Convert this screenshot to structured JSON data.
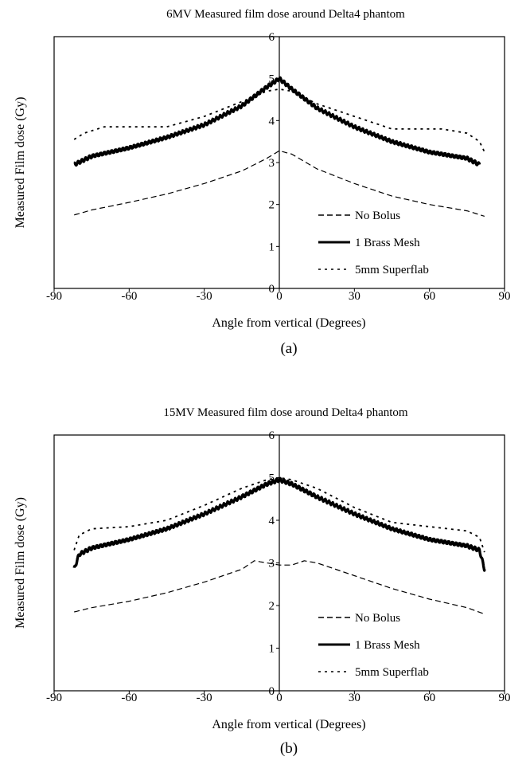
{
  "chart_data": [
    {
      "type": "line",
      "title": "6MV Measured film dose around Delta4 phantom",
      "xlabel": "Angle from vertical (Degrees)",
      "ylabel": "Measured Film dose (Gy)",
      "caption": "(a)",
      "xlim": [
        -90,
        90
      ],
      "ylim": [
        0,
        6
      ],
      "x_ticks": [
        "-90",
        "-60",
        "-30",
        "0",
        "30",
        "60",
        "90"
      ],
      "y_ticks": [
        "0",
        "1",
        "2",
        "3",
        "4",
        "5",
        "6"
      ],
      "grid": false,
      "legend_position": "lower-right",
      "series": [
        {
          "name": "No Bolus",
          "style": "dashed",
          "color": "#000000",
          "x": [
            -82,
            -75,
            -60,
            -45,
            -30,
            -15,
            -5,
            0,
            5,
            15,
            30,
            45,
            60,
            75,
            82
          ],
          "y": [
            1.75,
            1.87,
            2.05,
            2.25,
            2.5,
            2.8,
            3.1,
            3.28,
            3.2,
            2.85,
            2.5,
            2.2,
            2.0,
            1.85,
            1.72
          ]
        },
        {
          "name": "1 Brass Mesh",
          "style": "solid",
          "color": "#000000",
          "x": [
            -82,
            -75,
            -60,
            -45,
            -30,
            -15,
            -5,
            0,
            5,
            15,
            30,
            45,
            60,
            75,
            80
          ],
          "y": [
            2.95,
            3.15,
            3.35,
            3.6,
            3.9,
            4.35,
            4.8,
            5.0,
            4.75,
            4.3,
            3.85,
            3.5,
            3.25,
            3.1,
            2.95
          ]
        },
        {
          "name": "5mm Superflab",
          "style": "dotted",
          "color": "#000000",
          "x": [
            -82,
            -78,
            -70,
            -60,
            -45,
            -30,
            -15,
            -5,
            0,
            5,
            15,
            30,
            45,
            60,
            65,
            75,
            80,
            82
          ],
          "y": [
            3.55,
            3.7,
            3.85,
            3.85,
            3.85,
            4.1,
            4.45,
            4.7,
            4.75,
            4.7,
            4.4,
            4.1,
            3.8,
            3.8,
            3.8,
            3.7,
            3.5,
            3.25
          ]
        }
      ]
    },
    {
      "type": "line",
      "title": "15MV Measured film dose around Delta4 phantom",
      "xlabel": "Angle from vertical (Degrees)",
      "ylabel": "Measured Film dose (Gy)",
      "caption": "(b)",
      "xlim": [
        -90,
        90
      ],
      "ylim": [
        0,
        6
      ],
      "x_ticks": [
        "-90",
        "-60",
        "-30",
        "0",
        "30",
        "60",
        "90"
      ],
      "y_ticks": [
        "0",
        "1",
        "2",
        "3",
        "4",
        "5",
        "6"
      ],
      "grid": false,
      "legend_position": "lower-right",
      "series": [
        {
          "name": "No Bolus",
          "style": "dashed",
          "color": "#000000",
          "x": [
            -82,
            -75,
            -60,
            -45,
            -30,
            -15,
            -10,
            -5,
            0,
            5,
            10,
            15,
            30,
            45,
            60,
            75,
            82
          ],
          "y": [
            1.85,
            1.95,
            2.1,
            2.3,
            2.55,
            2.85,
            3.05,
            3.0,
            2.95,
            2.95,
            3.05,
            3.0,
            2.7,
            2.4,
            2.15,
            1.95,
            1.8
          ]
        },
        {
          "name": "1 Brass Mesh",
          "style": "solid",
          "color": "#000000",
          "x": [
            -82,
            -80,
            -75,
            -60,
            -45,
            -30,
            -15,
            -5,
            0,
            5,
            15,
            30,
            45,
            60,
            75,
            80,
            82
          ],
          "y": [
            2.85,
            3.2,
            3.35,
            3.55,
            3.8,
            4.15,
            4.55,
            4.85,
            4.95,
            4.85,
            4.55,
            4.15,
            3.8,
            3.55,
            3.4,
            3.3,
            2.85
          ]
        },
        {
          "name": "5mm Superflab",
          "style": "dotted",
          "color": "#000000",
          "x": [
            -82,
            -80,
            -75,
            -60,
            -45,
            -30,
            -15,
            -5,
            0,
            5,
            15,
            30,
            45,
            60,
            75,
            80,
            82
          ],
          "y": [
            3.3,
            3.65,
            3.8,
            3.85,
            4.0,
            4.35,
            4.75,
            4.95,
            5.0,
            4.95,
            4.75,
            4.3,
            3.95,
            3.85,
            3.75,
            3.6,
            3.25
          ]
        }
      ]
    }
  ]
}
